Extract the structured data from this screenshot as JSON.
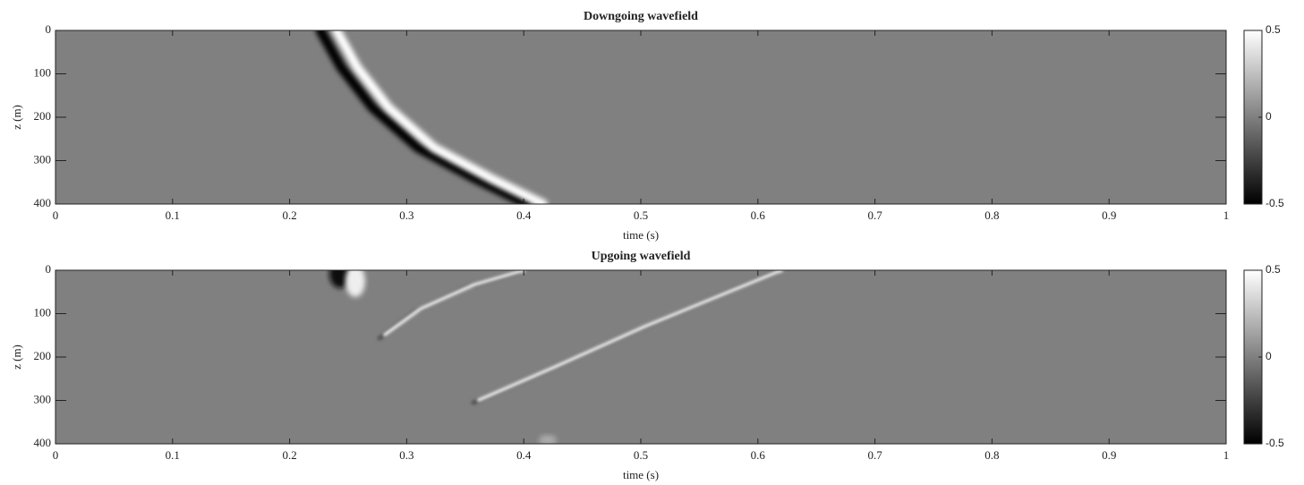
{
  "chart_data": [
    {
      "type": "heatmap",
      "title": "Downgoing wavefield",
      "xlabel": "time (s)",
      "ylabel": "z (m)",
      "xlim": [
        0,
        1
      ],
      "xticks": [
        0,
        0.1,
        0.2,
        0.3,
        0.4,
        0.5,
        0.6,
        0.7,
        0.8,
        0.9,
        1
      ],
      "ylim": [
        0,
        400
      ],
      "yticks": [
        0,
        100,
        200,
        300,
        400
      ],
      "y_reversed": true,
      "colormap": [
        "#000000",
        "#ffffff"
      ],
      "clim": [
        -0.5,
        0.5
      ],
      "cticks": [
        -0.5,
        0,
        0.5
      ]
    },
    {
      "type": "heatmap",
      "title": "Upgoing wavefield",
      "xlabel": "time (s)",
      "ylabel": "z (m)",
      "xlim": [
        0,
        1
      ],
      "xticks": [
        0,
        0.1,
        0.2,
        0.3,
        0.4,
        0.5,
        0.6,
        0.7,
        0.8,
        0.9,
        1
      ],
      "ylim": [
        0,
        400
      ],
      "yticks": [
        0,
        100,
        200,
        300,
        400
      ],
      "y_reversed": true,
      "colormap": [
        "#000000",
        "#ffffff"
      ],
      "clim": [
        -0.5,
        0.5
      ],
      "cticks": [
        -0.5,
        0,
        0.5
      ]
    }
  ]
}
